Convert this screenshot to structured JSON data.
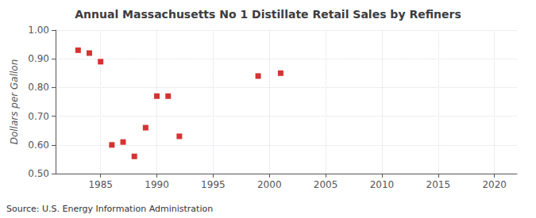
{
  "chart_data": {
    "type": "scatter",
    "title": "Annual Massachusetts No 1 Distillate Retail Sales by Refiners",
    "ylabel": "Dollars per Gallon",
    "annotations": [
      "Source: U.S. Energy Information Administration"
    ],
    "x": [
      1983,
      1984,
      1985,
      1986,
      1987,
      1988,
      1989,
      1990,
      1991,
      1992,
      1999,
      2001
    ],
    "values": [
      0.93,
      0.92,
      0.89,
      0.6,
      0.61,
      0.56,
      0.66,
      0.77,
      0.77,
      0.63,
      0.84,
      0.85
    ],
    "color": "#cc0000",
    "marker": "square",
    "xlim": [
      1981,
      2022
    ],
    "ylim": [
      0.5,
      1.0
    ],
    "xticks": [
      1985,
      1990,
      1995,
      2000,
      2005,
      2010,
      2015,
      2020
    ],
    "yticks": [
      {
        "value": 0.5,
        "label": "0.50"
      },
      {
        "value": 0.6,
        "label": "0.60"
      },
      {
        "value": 0.7,
        "label": "0.70"
      },
      {
        "value": 0.8,
        "label": "0.80"
      },
      {
        "value": 0.9,
        "label": "0.90"
      },
      {
        "value": 1.0,
        "label": "1.00"
      }
    ],
    "grid": true
  }
}
